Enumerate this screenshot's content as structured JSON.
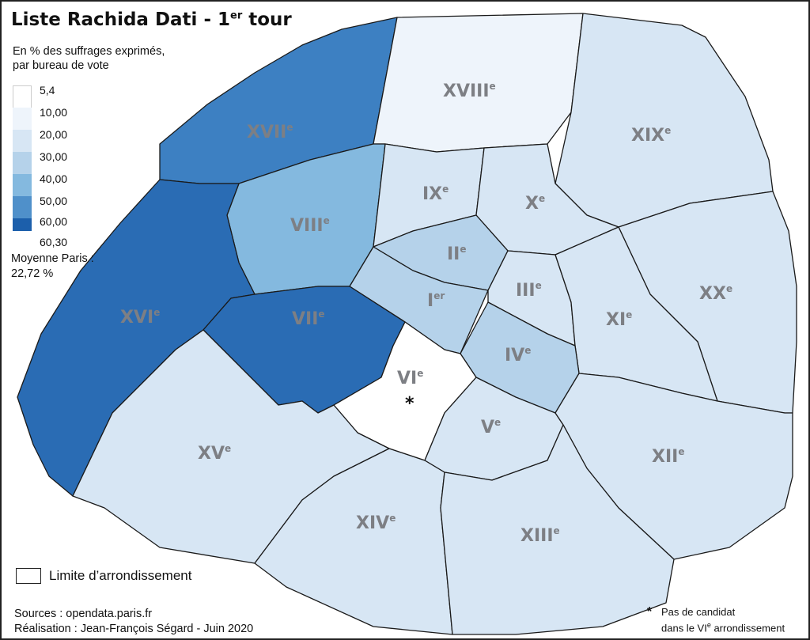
{
  "title": {
    "main": "Liste Rachida Dati - 1",
    "sup": "er",
    "tail": " tour"
  },
  "subtitle": [
    "En % des suffrages exprimés,",
    "par bureau de vote"
  ],
  "legend": {
    "bins": [
      {
        "label": "5,4",
        "color": "#ffffff"
      },
      {
        "label": "10,00",
        "color": "#eef4fb"
      },
      {
        "label": "20,00",
        "color": "#d7e6f4"
      },
      {
        "label": "30,00",
        "color": "#b5d2ea"
      },
      {
        "label": "40,00",
        "color": "#84b9df"
      },
      {
        "label": "50,00",
        "color": "#4f90ca"
      },
      {
        "label": "60,00",
        "color": "#1c5fab"
      },
      {
        "label": "60,30",
        "color": "#0b2a66"
      }
    ]
  },
  "mean": [
    "Moyenne Paris :",
    "22,72 %"
  ],
  "limit_label": "Limite d’arrondissement",
  "sources": [
    "Sources : opendata.paris.fr",
    "Réalisation : Jean-François Ségard - Juin 2020"
  ],
  "no_candidate": {
    "star": "*",
    "line1": "Pas de candidat",
    "line2_a": "dans le VI",
    "line2_sup": "e",
    "line2_b": " arrondissement"
  },
  "districts": [
    {
      "id": "I",
      "label": "I",
      "sup": "er",
      "color": "#b5d2ea"
    },
    {
      "id": "II",
      "label": "II",
      "sup": "e",
      "color": "#b5d2ea"
    },
    {
      "id": "III",
      "label": "III",
      "sup": "e",
      "color": "#d7e6f4"
    },
    {
      "id": "IV",
      "label": "IV",
      "sup": "e",
      "color": "#b5d2ea"
    },
    {
      "id": "V",
      "label": "V",
      "sup": "e",
      "color": "#d7e6f4"
    },
    {
      "id": "VI",
      "label": "VI",
      "sup": "e",
      "color": "#ffffff",
      "marker": "*"
    },
    {
      "id": "VII",
      "label": "VII",
      "sup": "e",
      "color": "#2a6cb4"
    },
    {
      "id": "VIII",
      "label": "VIII",
      "sup": "e",
      "color": "#84b9df"
    },
    {
      "id": "IX",
      "label": "IX",
      "sup": "e",
      "color": "#d7e6f4"
    },
    {
      "id": "X",
      "label": "X",
      "sup": "e",
      "color": "#d7e6f4"
    },
    {
      "id": "XI",
      "label": "XI",
      "sup": "e",
      "color": "#d7e6f4"
    },
    {
      "id": "XII",
      "label": "XII",
      "sup": "e",
      "color": "#d7e6f4"
    },
    {
      "id": "XIII",
      "label": "XIII",
      "sup": "e",
      "color": "#d7e6f4"
    },
    {
      "id": "XIV",
      "label": "XIV",
      "sup": "e",
      "color": "#d7e6f4"
    },
    {
      "id": "XV",
      "label": "XV",
      "sup": "e",
      "color": "#d7e6f4"
    },
    {
      "id": "XVI",
      "label": "XVI",
      "sup": "e",
      "color": "#2a6cb4"
    },
    {
      "id": "XVII",
      "label": "XVII",
      "sup": "e",
      "color": "#3d80c2"
    },
    {
      "id": "XVIII",
      "label": "XVIII",
      "sup": "e",
      "color": "#eef4fb"
    },
    {
      "id": "XIX",
      "label": "XIX",
      "sup": "e",
      "color": "#d7e6f4"
    },
    {
      "id": "XX",
      "label": "XX",
      "sup": "e",
      "color": "#d7e6f4"
    }
  ]
}
